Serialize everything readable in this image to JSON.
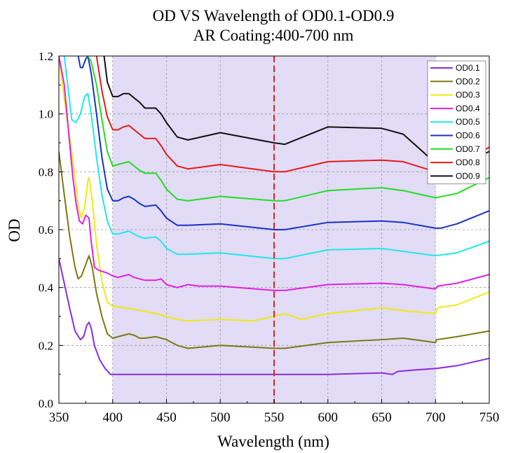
{
  "chart_data": {
    "type": "line",
    "title": "OD VS Wavelength of OD0.1-OD0.9",
    "subtitle": "AR Coating:400-700 nm",
    "xlabel": "Wavelength (nm)",
    "ylabel": "OD",
    "xlim": [
      350,
      750
    ],
    "ylim": [
      0.0,
      1.2
    ],
    "x_ticks": [
      "350",
      "400",
      "450",
      "500",
      "550",
      "600",
      "650",
      "700",
      "750"
    ],
    "y_ticks": [
      "0.0",
      "0.2",
      "0.4",
      "0.6",
      "0.8",
      "1.0",
      "1.2"
    ],
    "grid": true,
    "legend_position": "top-right",
    "shaded_region": {
      "x": [
        400,
        700
      ],
      "color": "#e2dcf7"
    },
    "reference_line": {
      "x": 550,
      "color": "#e02020",
      "style": "dashed"
    },
    "series": [
      {
        "name": "OD0.1",
        "color": "#8b2be2",
        "points": [
          [
            350,
            0.5
          ],
          [
            360,
            0.33
          ],
          [
            365,
            0.25
          ],
          [
            370,
            0.22
          ],
          [
            373,
            0.23
          ],
          [
            376,
            0.27
          ],
          [
            378,
            0.28
          ],
          [
            380,
            0.26
          ],
          [
            383,
            0.2
          ],
          [
            388,
            0.15
          ],
          [
            393,
            0.12
          ],
          [
            398,
            0.1
          ],
          [
            400,
            0.1
          ],
          [
            450,
            0.1
          ],
          [
            500,
            0.1
          ],
          [
            550,
            0.1
          ],
          [
            600,
            0.1
          ],
          [
            650,
            0.105
          ],
          [
            660,
            0.1
          ],
          [
            665,
            0.11
          ],
          [
            680,
            0.115
          ],
          [
            700,
            0.12
          ],
          [
            720,
            0.13
          ],
          [
            750,
            0.155
          ]
        ]
      },
      {
        "name": "OD0.2",
        "color": "#7a7a10",
        "points": [
          [
            350,
            0.87
          ],
          [
            355,
            0.72
          ],
          [
            360,
            0.58
          ],
          [
            365,
            0.47
          ],
          [
            368,
            0.43
          ],
          [
            371,
            0.44
          ],
          [
            375,
            0.48
          ],
          [
            377,
            0.5
          ],
          [
            378,
            0.51
          ],
          [
            381,
            0.47
          ],
          [
            385,
            0.38
          ],
          [
            390,
            0.3
          ],
          [
            395,
            0.24
          ],
          [
            400,
            0.225
          ],
          [
            405,
            0.23
          ],
          [
            410,
            0.235
          ],
          [
            415,
            0.24
          ],
          [
            420,
            0.235
          ],
          [
            425,
            0.225
          ],
          [
            430,
            0.225
          ],
          [
            440,
            0.23
          ],
          [
            450,
            0.22
          ],
          [
            460,
            0.2
          ],
          [
            470,
            0.19
          ],
          [
            500,
            0.2
          ],
          [
            550,
            0.19
          ],
          [
            560,
            0.19
          ],
          [
            600,
            0.21
          ],
          [
            650,
            0.22
          ],
          [
            670,
            0.225
          ],
          [
            700,
            0.21
          ],
          [
            701,
            0.22
          ],
          [
            720,
            0.23
          ],
          [
            750,
            0.25
          ]
        ]
      },
      {
        "name": "OD0.3",
        "color": "#f0ea10",
        "points": [
          [
            350,
            1.2
          ],
          [
            355,
            1.05
          ],
          [
            360,
            0.92
          ],
          [
            365,
            0.78
          ],
          [
            368,
            0.68
          ],
          [
            371,
            0.64
          ],
          [
            374,
            0.68
          ],
          [
            377,
            0.77
          ],
          [
            378,
            0.78
          ],
          [
            381,
            0.7
          ],
          [
            385,
            0.55
          ],
          [
            390,
            0.42
          ],
          [
            395,
            0.35
          ],
          [
            400,
            0.335
          ],
          [
            420,
            0.325
          ],
          [
            440,
            0.31
          ],
          [
            450,
            0.3
          ],
          [
            460,
            0.29
          ],
          [
            470,
            0.285
          ],
          [
            500,
            0.29
          ],
          [
            530,
            0.285
          ],
          [
            550,
            0.3
          ],
          [
            560,
            0.31
          ],
          [
            575,
            0.29
          ],
          [
            600,
            0.31
          ],
          [
            650,
            0.33
          ],
          [
            670,
            0.32
          ],
          [
            700,
            0.31
          ],
          [
            702,
            0.33
          ],
          [
            720,
            0.34
          ],
          [
            750,
            0.385
          ]
        ]
      },
      {
        "name": "OD0.4",
        "color": "#e020e0",
        "points": [
          [
            350,
            1.2
          ],
          [
            355,
            1.1
          ],
          [
            360,
            0.9
          ],
          [
            363,
            0.78
          ],
          [
            366,
            0.69
          ],
          [
            369,
            0.63
          ],
          [
            372,
            0.62
          ],
          [
            375,
            0.65
          ],
          [
            378,
            0.64
          ],
          [
            380,
            0.56
          ],
          [
            383,
            0.47
          ],
          [
            387,
            0.46
          ],
          [
            395,
            0.45
          ],
          [
            400,
            0.44
          ],
          [
            405,
            0.435
          ],
          [
            410,
            0.44
          ],
          [
            415,
            0.445
          ],
          [
            420,
            0.435
          ],
          [
            425,
            0.43
          ],
          [
            430,
            0.425
          ],
          [
            440,
            0.425
          ],
          [
            445,
            0.43
          ],
          [
            450,
            0.41
          ],
          [
            460,
            0.4
          ],
          [
            470,
            0.41
          ],
          [
            480,
            0.405
          ],
          [
            500,
            0.405
          ],
          [
            550,
            0.39
          ],
          [
            560,
            0.39
          ],
          [
            600,
            0.41
          ],
          [
            650,
            0.415
          ],
          [
            670,
            0.41
          ],
          [
            700,
            0.395
          ],
          [
            702,
            0.405
          ],
          [
            720,
            0.415
          ],
          [
            750,
            0.445
          ]
        ]
      },
      {
        "name": "OD0.5",
        "color": "#20e8e8",
        "points": [
          [
            355,
            1.2
          ],
          [
            362,
            0.98
          ],
          [
            366,
            0.97
          ],
          [
            370,
            1.0
          ],
          [
            374,
            1.06
          ],
          [
            377,
            1.07
          ],
          [
            380,
            1.0
          ],
          [
            385,
            0.85
          ],
          [
            390,
            0.72
          ],
          [
            395,
            0.63
          ],
          [
            400,
            0.585
          ],
          [
            405,
            0.585
          ],
          [
            410,
            0.59
          ],
          [
            415,
            0.595
          ],
          [
            420,
            0.585
          ],
          [
            425,
            0.575
          ],
          [
            430,
            0.57
          ],
          [
            440,
            0.575
          ],
          [
            445,
            0.56
          ],
          [
            450,
            0.535
          ],
          [
            460,
            0.515
          ],
          [
            470,
            0.515
          ],
          [
            500,
            0.52
          ],
          [
            550,
            0.5
          ],
          [
            560,
            0.5
          ],
          [
            600,
            0.53
          ],
          [
            650,
            0.535
          ],
          [
            670,
            0.525
          ],
          [
            700,
            0.51
          ],
          [
            720,
            0.52
          ],
          [
            750,
            0.56
          ]
        ]
      },
      {
        "name": "OD0.6",
        "color": "#1a30c8",
        "points": [
          [
            368,
            1.2
          ],
          [
            370,
            1.16
          ],
          [
            372,
            1.16
          ],
          [
            375,
            1.19
          ],
          [
            377,
            1.2
          ],
          [
            380,
            1.14
          ],
          [
            385,
            1.0
          ],
          [
            390,
            0.85
          ],
          [
            395,
            0.74
          ],
          [
            400,
            0.7
          ],
          [
            405,
            0.7
          ],
          [
            410,
            0.71
          ],
          [
            415,
            0.715
          ],
          [
            420,
            0.705
          ],
          [
            425,
            0.69
          ],
          [
            430,
            0.68
          ],
          [
            440,
            0.685
          ],
          [
            445,
            0.665
          ],
          [
            450,
            0.64
          ],
          [
            460,
            0.615
          ],
          [
            470,
            0.615
          ],
          [
            500,
            0.62
          ],
          [
            550,
            0.6
          ],
          [
            560,
            0.6
          ],
          [
            600,
            0.625
          ],
          [
            650,
            0.63
          ],
          [
            670,
            0.625
          ],
          [
            700,
            0.605
          ],
          [
            705,
            0.605
          ],
          [
            720,
            0.62
          ],
          [
            750,
            0.665
          ]
        ]
      },
      {
        "name": "OD0.7",
        "color": "#22dd22",
        "points": [
          [
            377,
            1.2
          ],
          [
            380,
            1.18
          ],
          [
            385,
            1.1
          ],
          [
            390,
            0.98
          ],
          [
            395,
            0.87
          ],
          [
            400,
            0.82
          ],
          [
            405,
            0.825
          ],
          [
            410,
            0.83
          ],
          [
            415,
            0.835
          ],
          [
            420,
            0.82
          ],
          [
            425,
            0.805
          ],
          [
            430,
            0.795
          ],
          [
            440,
            0.795
          ],
          [
            445,
            0.77
          ],
          [
            450,
            0.74
          ],
          [
            460,
            0.705
          ],
          [
            470,
            0.7
          ],
          [
            500,
            0.715
          ],
          [
            550,
            0.7
          ],
          [
            560,
            0.7
          ],
          [
            600,
            0.735
          ],
          [
            650,
            0.745
          ],
          [
            670,
            0.735
          ],
          [
            700,
            0.71
          ],
          [
            720,
            0.725
          ],
          [
            750,
            0.78
          ]
        ]
      },
      {
        "name": "OD0.8",
        "color": "#e81818",
        "points": [
          [
            385,
            1.2
          ],
          [
            390,
            1.08
          ],
          [
            395,
            0.99
          ],
          [
            400,
            0.945
          ],
          [
            405,
            0.945
          ],
          [
            410,
            0.955
          ],
          [
            415,
            0.96
          ],
          [
            420,
            0.945
          ],
          [
            425,
            0.93
          ],
          [
            430,
            0.915
          ],
          [
            440,
            0.915
          ],
          [
            445,
            0.89
          ],
          [
            450,
            0.86
          ],
          [
            460,
            0.82
          ],
          [
            470,
            0.81
          ],
          [
            500,
            0.825
          ],
          [
            550,
            0.8
          ],
          [
            560,
            0.8
          ],
          [
            600,
            0.835
          ],
          [
            650,
            0.84
          ],
          [
            670,
            0.835
          ],
          [
            700,
            0.8
          ],
          [
            720,
            0.82
          ],
          [
            750,
            0.885
          ]
        ]
      },
      {
        "name": "OD0.9",
        "color": "#111111",
        "points": [
          [
            392,
            1.2
          ],
          [
            395,
            1.11
          ],
          [
            400,
            1.06
          ],
          [
            405,
            1.06
          ],
          [
            410,
            1.07
          ],
          [
            415,
            1.07
          ],
          [
            420,
            1.055
          ],
          [
            425,
            1.04
          ],
          [
            430,
            1.02
          ],
          [
            440,
            1.02
          ],
          [
            445,
            1.0
          ],
          [
            450,
            0.97
          ],
          [
            460,
            0.92
          ],
          [
            470,
            0.91
          ],
          [
            500,
            0.935
          ],
          [
            550,
            0.9
          ],
          [
            560,
            0.895
          ],
          [
            600,
            0.955
          ],
          [
            650,
            0.95
          ],
          [
            670,
            0.93
          ],
          [
            700,
            0.83
          ],
          [
            720,
            0.82
          ],
          [
            750,
            0.87
          ]
        ]
      }
    ]
  }
}
